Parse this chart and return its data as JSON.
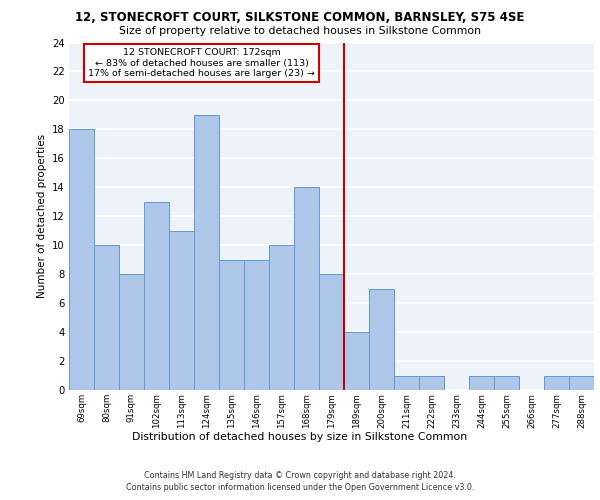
{
  "title": "12, STONECROFT COURT, SILKSTONE COMMON, BARNSLEY, S75 4SE",
  "subtitle": "Size of property relative to detached houses in Silkstone Common",
  "xlabel": "Distribution of detached houses by size in Silkstone Common",
  "ylabel": "Number of detached properties",
  "categories": [
    "69sqm",
    "80sqm",
    "91sqm",
    "102sqm",
    "113sqm",
    "124sqm",
    "135sqm",
    "146sqm",
    "157sqm",
    "168sqm",
    "179sqm",
    "189sqm",
    "200sqm",
    "211sqm",
    "222sqm",
    "233sqm",
    "244sqm",
    "255sqm",
    "266sqm",
    "277sqm",
    "288sqm"
  ],
  "values": [
    18,
    10,
    8,
    13,
    11,
    19,
    9,
    9,
    10,
    14,
    8,
    4,
    7,
    1,
    1,
    0,
    1,
    1,
    0,
    1,
    1
  ],
  "bar_color": "#aec6e8",
  "bar_edge_color": "#5b9bd5",
  "annotation_text_line1": "12 STONECROFT COURT: 172sqm",
  "annotation_text_line2": "← 83% of detached houses are smaller (113)",
  "annotation_text_line3": "17% of semi-detached houses are larger (23) →",
  "annotation_box_color": "#ffffff",
  "annotation_box_edge_color": "#cc0000",
  "vline_color": "#cc0000",
  "vline_x": 10.5,
  "ylim": [
    0,
    24
  ],
  "yticks": [
    0,
    2,
    4,
    6,
    8,
    10,
    12,
    14,
    16,
    18,
    20,
    22,
    24
  ],
  "background_color": "#eef2f9",
  "grid_color": "#ffffff",
  "footer_line1": "Contains HM Land Registry data © Crown copyright and database right 2024.",
  "footer_line2": "Contains public sector information licensed under the Open Government Licence v3.0."
}
